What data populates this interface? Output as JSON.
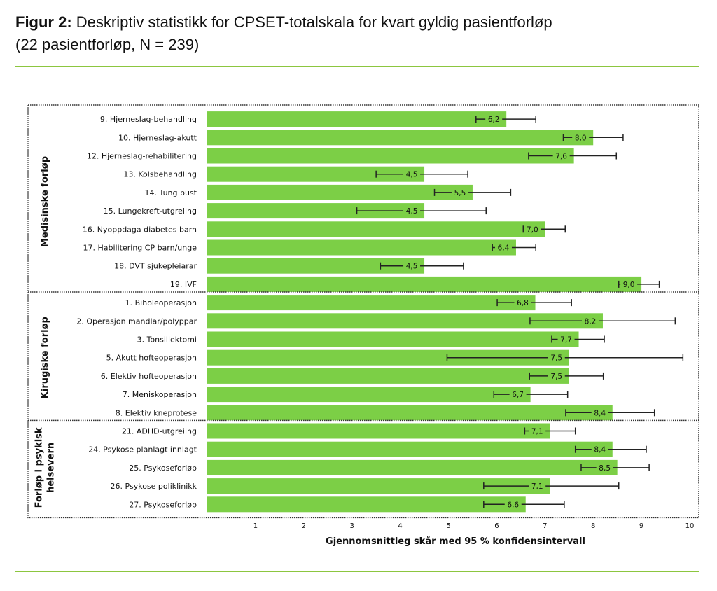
{
  "title": {
    "prefix": "Figur 2:",
    "text": "Deskriptiv statistikk for CPSET-totalskala for kvart gyldig pasientforløp",
    "line2": "(22 pasientforløp, N = 239)"
  },
  "colors": {
    "bar": "#7ccf46",
    "rule": "#8cc63f",
    "error_bar": "#222222"
  },
  "chart_data": {
    "type": "bar",
    "orientation": "horizontal",
    "xlabel": "Gjennomsnittleg skår med 95 % konfidensintervall",
    "xlim": [
      0,
      10
    ],
    "xticks": [
      1,
      2,
      3,
      4,
      5,
      6,
      7,
      8,
      9,
      10
    ],
    "grid": false,
    "groups": [
      {
        "name": "Medisinske forløp",
        "items": [
          {
            "label": "9. Hjerneslag-behandling",
            "value": 6.2,
            "value_label": "6,2",
            "ci": [
              5.57,
              6.81
            ]
          },
          {
            "label": "10. Hjerneslag-akutt",
            "value": 8.0,
            "value_label": "8,0",
            "ci": [
              7.38,
              8.62
            ]
          },
          {
            "label": "12. Hjerneslag-rehabilitering",
            "value": 7.6,
            "value_label": "7,6",
            "ci": [
              6.66,
              8.48
            ]
          },
          {
            "label": "13. Kolsbehandling",
            "value": 4.5,
            "value_label": "4,5",
            "ci": [
              3.5,
              5.4
            ]
          },
          {
            "label": "14. Tung pust",
            "value": 5.5,
            "value_label": "5,5",
            "ci": [
              4.71,
              6.29
            ]
          },
          {
            "label": "15. Lungekreft-utgreiing",
            "value": 4.5,
            "value_label": "4,5",
            "ci": [
              3.1,
              5.78
            ]
          },
          {
            "label": "16. Nyoppdaga diabetes barn",
            "value": 7.0,
            "value_label": "7,0",
            "ci": [
              6.55,
              7.42
            ]
          },
          {
            "label": "17. Habilitering CP barn/unge",
            "value": 6.4,
            "value_label": "6,4",
            "ci": [
              5.91,
              6.81
            ]
          },
          {
            "label": "18. DVT sjukepleiarar",
            "value": 4.5,
            "value_label": "4,5",
            "ci": [
              3.59,
              5.31
            ]
          },
          {
            "label": "19. IVF",
            "value": 9.0,
            "value_label": "9,0",
            "ci": [
              8.53,
              9.37
            ]
          }
        ]
      },
      {
        "name": "Kirugiske forløp",
        "items": [
          {
            "label": "1. Biholeoperasjon",
            "value": 6.8,
            "value_label": "6,8",
            "ci": [
              6.01,
              7.55
            ]
          },
          {
            "label": "2. Operasjon mandlar/polyppar",
            "value": 8.2,
            "value_label": "8,2",
            "ci": [
              6.69,
              9.7
            ]
          },
          {
            "label": "3. Tonsillektomi",
            "value": 7.7,
            "value_label": "7,7",
            "ci": [
              7.14,
              8.23
            ]
          },
          {
            "label": "5. Akutt hofteoperasjon",
            "value": 7.5,
            "value_label": "7,5",
            "ci": [
              4.97,
              9.86
            ]
          },
          {
            "label": "6. Elektiv hofteoperasjon",
            "value": 7.5,
            "value_label": "7,5",
            "ci": [
              6.68,
              8.21
            ]
          },
          {
            "label": "7. Meniskoperasjon",
            "value": 6.7,
            "value_label": "6,7",
            "ci": [
              5.94,
              7.47
            ]
          },
          {
            "label": "8. Elektiv kneprotese",
            "value": 8.4,
            "value_label": "8,4",
            "ci": [
              7.43,
              9.27
            ]
          }
        ]
      },
      {
        "name": "Forløp i psykisk helsevern",
        "name_lines": [
          "Forløp i psykisk",
          "helsevern"
        ],
        "items": [
          {
            "label": "21. ADHD-utgreiing",
            "value": 7.1,
            "value_label": "7,1",
            "ci": [
              6.58,
              7.63
            ]
          },
          {
            "label": "24. Psykose planlagt innlagt",
            "value": 8.4,
            "value_label": "8,4",
            "ci": [
              7.63,
              9.1
            ]
          },
          {
            "label": "25. Psykoseforløp",
            "value": 8.5,
            "value_label": "8,5",
            "ci": [
              7.75,
              9.16
            ]
          },
          {
            "label": "26. Psykose poliklinikk",
            "value": 7.1,
            "value_label": "7,1",
            "ci": [
              5.73,
              8.53
            ]
          },
          {
            "label": "27. Psykoseforløp",
            "value": 6.6,
            "value_label": "6,6",
            "ci": [
              5.73,
              7.4
            ]
          }
        ]
      }
    ]
  }
}
